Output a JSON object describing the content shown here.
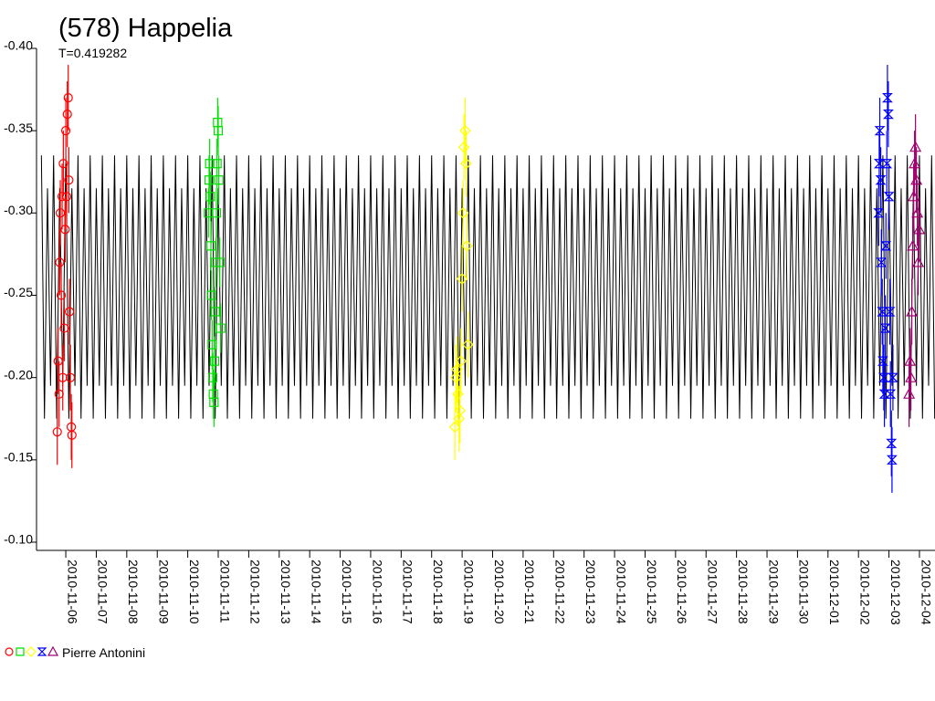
{
  "chart_data": {
    "type": "scatter",
    "title": "(578) Happelia",
    "subtitle": "T=0.419282",
    "legend_label": "Pierre Antonini",
    "xlim": [
      -0.96,
      28.51
    ],
    "ylim": [
      -0.1,
      -0.4
    ],
    "yticks": [
      {
        "value": -0.4,
        "label": "-0.40"
      },
      {
        "value": -0.35,
        "label": "-0.35"
      },
      {
        "value": -0.3,
        "label": "-0.30"
      },
      {
        "value": -0.25,
        "label": "-0.25"
      },
      {
        "value": -0.2,
        "label": "-0.20"
      },
      {
        "value": -0.15,
        "label": "-0.15"
      },
      {
        "value": -0.1,
        "label": "-0.10"
      }
    ],
    "xticks": [
      {
        "value": 0,
        "label": "2010-11-06"
      },
      {
        "value": 1,
        "label": "2010-11-07"
      },
      {
        "value": 2,
        "label": "2010-11-08"
      },
      {
        "value": 3,
        "label": "2010-11-09"
      },
      {
        "value": 4,
        "label": "2010-11-10"
      },
      {
        "value": 5,
        "label": "2010-11-11"
      },
      {
        "value": 6,
        "label": "2010-11-12"
      },
      {
        "value": 7,
        "label": "2010-11-13"
      },
      {
        "value": 8,
        "label": "2010-11-14"
      },
      {
        "value": 9,
        "label": "2010-11-15"
      },
      {
        "value": 10,
        "label": "2010-11-16"
      },
      {
        "value": 11,
        "label": "2010-11-17"
      },
      {
        "value": 12,
        "label": "2010-11-18"
      },
      {
        "value": 13,
        "label": "2010-11-19"
      },
      {
        "value": 14,
        "label": "2010-11-20"
      },
      {
        "value": 15,
        "label": "2010-11-21"
      },
      {
        "value": 16,
        "label": "2010-11-22"
      },
      {
        "value": 17,
        "label": "2010-11-23"
      },
      {
        "value": 18,
        "label": "2010-11-24"
      },
      {
        "value": 19,
        "label": "2010-11-25"
      },
      {
        "value": 20,
        "label": "2010-11-26"
      },
      {
        "value": 21,
        "label": "2010-11-27"
      },
      {
        "value": 22,
        "label": "2010-11-28"
      },
      {
        "value": 23,
        "label": "2010-11-29"
      },
      {
        "value": 24,
        "label": "2010-11-30"
      },
      {
        "value": 25,
        "label": "2010-12-01"
      },
      {
        "value": 26,
        "label": "2010-12-02"
      },
      {
        "value": 27,
        "label": "2010-12-03"
      },
      {
        "value": 28,
        "label": "2010-12-04"
      }
    ],
    "series": [
      {
        "kind": "line",
        "color": "#000000",
        "x": [
          -0.8,
          -0.7,
          -0.6,
          -0.5,
          -0.4,
          -0.3,
          -0.2,
          -0.1,
          0,
          0.1,
          0.2,
          0.3,
          0.4,
          0.5,
          0.6,
          0.7,
          0.8,
          0.9,
          1,
          1.1,
          1.2,
          1.3,
          1.4,
          1.5,
          1.6,
          1.7,
          1.8,
          1.9,
          2,
          2.1,
          2.2,
          2.3,
          2.4,
          2.5,
          2.6,
          2.7,
          2.8,
          2.9,
          3,
          3.1,
          3.2,
          3.3,
          3.4,
          3.5,
          3.6,
          3.7,
          3.8,
          3.9,
          4,
          4.1,
          4.2,
          4.3,
          4.4,
          4.5,
          4.6,
          4.7,
          4.8,
          4.9,
          5,
          5.1,
          5.2,
          5.3,
          5.4,
          5.5,
          5.6,
          5.7,
          5.8,
          5.9,
          6,
          6.1,
          6.2,
          6.3,
          6.4,
          6.5,
          6.6,
          6.7,
          6.8,
          6.9,
          7,
          7.1,
          7.2,
          7.3,
          7.4,
          7.5,
          7.6,
          7.7,
          7.8,
          7.9,
          8,
          8.1,
          8.2,
          8.3,
          8.4,
          8.5,
          8.6,
          8.7,
          8.8,
          8.9,
          9,
          9.1,
          9.2,
          9.3,
          9.4,
          9.5,
          9.6,
          9.7,
          9.8,
          9.9,
          10,
          10.1,
          10.2,
          10.3,
          10.4,
          10.5,
          10.6,
          10.7,
          10.8,
          10.9,
          11,
          11.1,
          11.2,
          11.3,
          11.4,
          11.5,
          11.6,
          11.7,
          11.8,
          11.9,
          12,
          12.1,
          12.2,
          12.3,
          12.4,
          12.5,
          12.6,
          12.7,
          12.8,
          12.9,
          13,
          13.1,
          13.2,
          13.3,
          13.4,
          13.5,
          13.6,
          13.7,
          13.8,
          13.9,
          14,
          14.1,
          14.2,
          14.3,
          14.4,
          14.5,
          14.6,
          14.7,
          14.8,
          14.9,
          15,
          15.1,
          15.2,
          15.3,
          15.4,
          15.5,
          15.6,
          15.7,
          15.8,
          15.9,
          16,
          16.1,
          16.2,
          16.3,
          16.4,
          16.5,
          16.6,
          16.7,
          16.8,
          16.9,
          17,
          17.1,
          17.2,
          17.3,
          17.4,
          17.5,
          17.6,
          17.7,
          17.8,
          17.9,
          18,
          18.1,
          18.2,
          18.3,
          18.4,
          18.5,
          18.6,
          18.7,
          18.8,
          18.9,
          19,
          19.1,
          19.2,
          19.3,
          19.4,
          19.5,
          19.6,
          19.7,
          19.8,
          19.9,
          20,
          20.1,
          20.2,
          20.3,
          20.4,
          20.5,
          20.6,
          20.7,
          20.8,
          20.9,
          21,
          21.1,
          21.2,
          21.3,
          21.4,
          21.5,
          21.6,
          21.7,
          21.8,
          21.9,
          22,
          22.1,
          22.2,
          22.3,
          22.4,
          22.5,
          22.6,
          22.7,
          22.8,
          22.9,
          23,
          23.1,
          23.2,
          23.3,
          23.4,
          23.5,
          23.6,
          23.7,
          23.8,
          23.9,
          24,
          24.1,
          24.2,
          24.3,
          24.4,
          24.5,
          24.6,
          24.7,
          24.8,
          24.9,
          25,
          25.1,
          25.2,
          25.3,
          25.4,
          25.5,
          25.6,
          25.7,
          25.8,
          25.9,
          26,
          26.1,
          26.2,
          26.3,
          26.4,
          26.5,
          26.6,
          26.7,
          26.8,
          26.9,
          27,
          27.1,
          27.2,
          27.3,
          27.4,
          27.5,
          27.6,
          27.7,
          27.8,
          27.9,
          28,
          28.1,
          28.2,
          28.3,
          28.4,
          28.5
        ],
        "values": [
          -0.335,
          -0.175,
          -0.315,
          -0.195,
          -0.335,
          -0.175,
          -0.315,
          -0.195,
          -0.335,
          -0.175,
          -0.315,
          -0.195,
          -0.335,
          -0.175,
          -0.315,
          -0.195,
          -0.335,
          -0.175,
          -0.315,
          -0.195,
          -0.335,
          -0.175,
          -0.315,
          -0.195,
          -0.335,
          -0.175,
          -0.315,
          -0.195,
          -0.335,
          -0.175,
          -0.315,
          -0.195,
          -0.335,
          -0.175,
          -0.315,
          -0.195,
          -0.335,
          -0.175,
          -0.315,
          -0.195,
          -0.335,
          -0.175,
          -0.315,
          -0.195,
          -0.335,
          -0.175,
          -0.315,
          -0.195,
          -0.335,
          -0.175,
          -0.315,
          -0.195,
          -0.335,
          -0.175,
          -0.315,
          -0.195,
          -0.335,
          -0.175,
          -0.315,
          -0.195,
          -0.335,
          -0.175,
          -0.315,
          -0.195,
          -0.335,
          -0.175,
          -0.315,
          -0.195,
          -0.335,
          -0.175,
          -0.315,
          -0.195,
          -0.335,
          -0.175,
          -0.315,
          -0.195,
          -0.335,
          -0.175,
          -0.315,
          -0.195,
          -0.335,
          -0.175,
          -0.315,
          -0.195,
          -0.335,
          -0.175,
          -0.315,
          -0.195,
          -0.335,
          -0.175,
          -0.315,
          -0.195,
          -0.335,
          -0.175,
          -0.315,
          -0.195,
          -0.335,
          -0.175,
          -0.315,
          -0.195,
          -0.335,
          -0.175,
          -0.315,
          -0.195,
          -0.335,
          -0.175,
          -0.315,
          -0.195,
          -0.335,
          -0.175,
          -0.315,
          -0.195,
          -0.335,
          -0.175,
          -0.315,
          -0.195,
          -0.335,
          -0.175,
          -0.315,
          -0.195,
          -0.335,
          -0.175,
          -0.315,
          -0.195,
          -0.335,
          -0.175,
          -0.315,
          -0.195,
          -0.335,
          -0.175,
          -0.315,
          -0.195,
          -0.335,
          -0.175,
          -0.315,
          -0.195,
          -0.335,
          -0.175,
          -0.315,
          -0.195,
          -0.335,
          -0.175,
          -0.315,
          -0.195,
          -0.335,
          -0.175,
          -0.315,
          -0.195,
          -0.335,
          -0.175,
          -0.315,
          -0.195,
          -0.335,
          -0.175,
          -0.315,
          -0.195,
          -0.335,
          -0.175,
          -0.315,
          -0.195,
          -0.335,
          -0.175,
          -0.315,
          -0.195,
          -0.335,
          -0.175,
          -0.315,
          -0.195,
          -0.335,
          -0.175,
          -0.315,
          -0.195,
          -0.335,
          -0.175,
          -0.315,
          -0.195,
          -0.335,
          -0.175,
          -0.315,
          -0.195,
          -0.335,
          -0.175,
          -0.315,
          -0.195,
          -0.335,
          -0.175,
          -0.315,
          -0.195,
          -0.335,
          -0.175,
          -0.315,
          -0.195,
          -0.335,
          -0.175,
          -0.315,
          -0.195,
          -0.335,
          -0.175,
          -0.315,
          -0.195,
          -0.335,
          -0.175,
          -0.315,
          -0.195,
          -0.335,
          -0.175,
          -0.315,
          -0.195,
          -0.335,
          -0.175,
          -0.315,
          -0.195,
          -0.335,
          -0.175,
          -0.315,
          -0.195,
          -0.335,
          -0.175,
          -0.315,
          -0.195,
          -0.335,
          -0.175,
          -0.315,
          -0.195,
          -0.335,
          -0.175,
          -0.315,
          -0.195,
          -0.335,
          -0.175,
          -0.315,
          -0.195,
          -0.335,
          -0.175,
          -0.315,
          -0.195,
          -0.335,
          -0.175,
          -0.315,
          -0.195,
          -0.335,
          -0.175,
          -0.315,
          -0.195,
          -0.335,
          -0.175,
          -0.315,
          -0.195,
          -0.335,
          -0.175,
          -0.315,
          -0.195,
          -0.335,
          -0.175,
          -0.315,
          -0.195,
          -0.335,
          -0.175,
          -0.315,
          -0.195,
          -0.335,
          -0.175,
          -0.315,
          -0.195,
          -0.335,
          -0.175,
          -0.315,
          -0.195,
          -0.335,
          -0.175,
          -0.315,
          -0.195,
          -0.335,
          -0.175,
          -0.315,
          -0.195,
          -0.335,
          -0.175,
          -0.315,
          -0.195,
          -0.335,
          -0.175,
          -0.315,
          -0.195,
          -0.335,
          -0.175,
          -0.315,
          -0.195,
          -0.335,
          -0.175,
          -0.315,
          -0.195,
          -0.335,
          -0.175
        ]
      },
      {
        "kind": "points",
        "marker": "circle",
        "color": "#ff0000",
        "error": 0.02,
        "x": [
          -0.28,
          -0.25,
          -0.22,
          -0.2,
          -0.18,
          -0.15,
          -0.12,
          -0.1,
          -0.08,
          -0.05,
          -0.02,
          0,
          0.03,
          0.05,
          0.08,
          0.1,
          0.12,
          0.15,
          0.18,
          0.2
        ],
        "values": [
          -0.167,
          -0.21,
          -0.19,
          -0.27,
          -0.3,
          -0.25,
          -0.31,
          -0.2,
          -0.33,
          -0.23,
          -0.29,
          -0.35,
          -0.31,
          -0.36,
          -0.37,
          -0.32,
          -0.24,
          -0.2,
          -0.17,
          -0.165
        ]
      },
      {
        "kind": "points",
        "marker": "square",
        "color": "#00e000",
        "error": 0.015,
        "x": [
          4.68,
          4.7,
          4.72,
          4.74,
          4.76,
          4.78,
          4.8,
          4.82,
          4.84,
          4.86,
          4.88,
          4.9,
          4.92,
          4.94,
          4.96,
          4.98,
          5.0,
          5.02,
          5.05,
          5.08
        ],
        "values": [
          -0.3,
          -0.32,
          -0.33,
          -0.31,
          -0.28,
          -0.25,
          -0.22,
          -0.2,
          -0.19,
          -0.185,
          -0.21,
          -0.24,
          -0.27,
          -0.3,
          -0.33,
          -0.355,
          -0.35,
          -0.32,
          -0.27,
          -0.23
        ]
      },
      {
        "kind": "points",
        "marker": "diamond",
        "color": "#ffff00",
        "error": 0.02,
        "x": [
          12.76,
          12.8,
          12.83,
          12.86,
          12.9,
          12.93,
          12.96,
          13.0,
          13.03,
          13.06,
          13.1,
          13.13,
          13.16,
          13.19
        ],
        "values": [
          -0.17,
          -0.2,
          -0.205,
          -0.19,
          -0.175,
          -0.18,
          -0.21,
          -0.26,
          -0.3,
          -0.34,
          -0.35,
          -0.33,
          -0.28,
          -0.22
        ]
      },
      {
        "kind": "points",
        "marker": "hourglass",
        "color": "#0000ff",
        "error": 0.02,
        "x": [
          26.66,
          26.68,
          26.7,
          26.73,
          26.75,
          26.78,
          26.8,
          26.83,
          26.85,
          26.88,
          26.9,
          26.93,
          26.95,
          26.98,
          27.0,
          27.03,
          27.05,
          27.08,
          27.1,
          27.13
        ],
        "values": [
          -0.3,
          -0.33,
          -0.35,
          -0.32,
          -0.27,
          -0.24,
          -0.21,
          -0.2,
          -0.19,
          -0.23,
          -0.28,
          -0.33,
          -0.37,
          -0.36,
          -0.31,
          -0.24,
          -0.19,
          -0.16,
          -0.15,
          -0.2
        ]
      },
      {
        "kind": "points",
        "marker": "triangle",
        "color": "#a0006e",
        "error": 0.02,
        "x": [
          27.66,
          27.69,
          27.72,
          27.75,
          27.78,
          27.81,
          27.84,
          27.87,
          27.9,
          27.93,
          27.96,
          27.99
        ],
        "values": [
          -0.19,
          -0.21,
          -0.2,
          -0.24,
          -0.28,
          -0.31,
          -0.33,
          -0.34,
          -0.32,
          -0.3,
          -0.27,
          -0.29
        ]
      }
    ]
  }
}
